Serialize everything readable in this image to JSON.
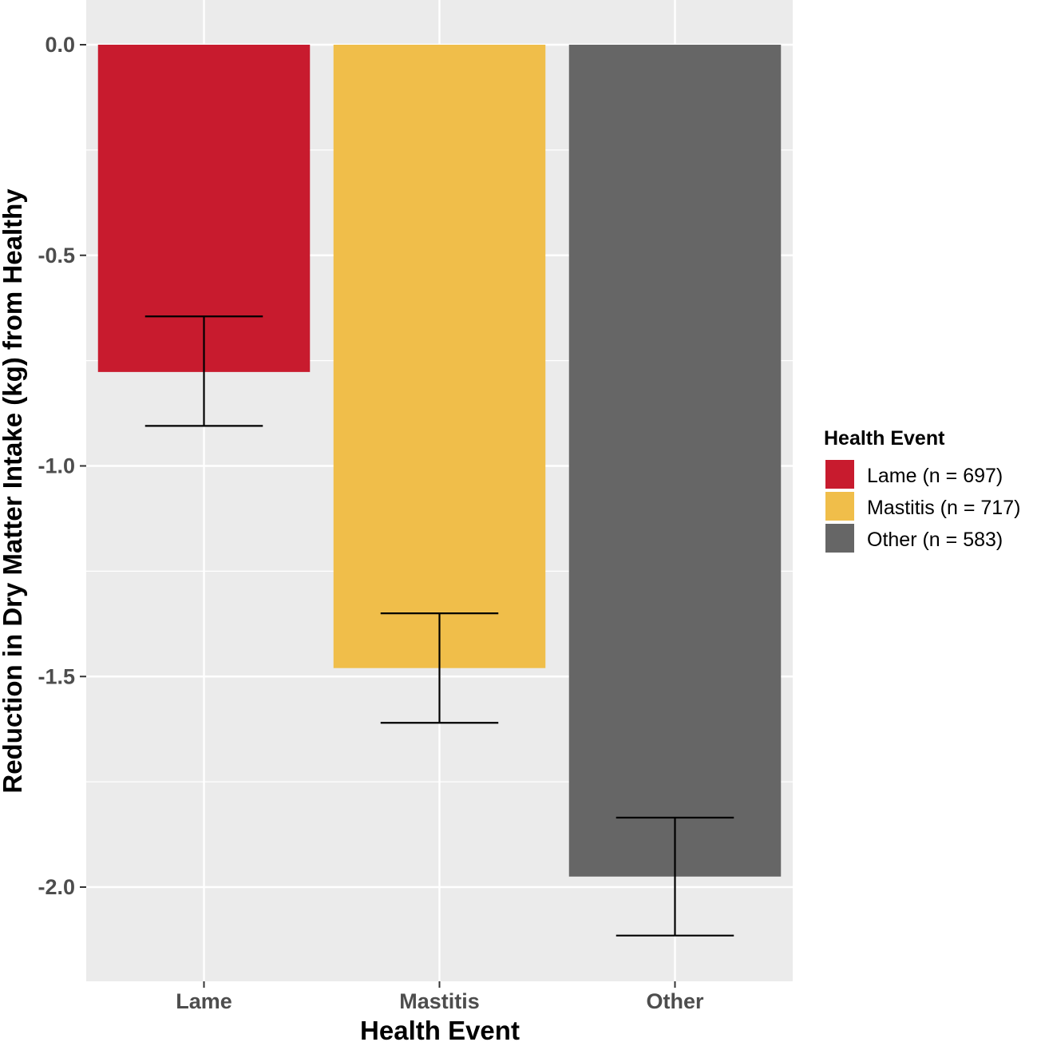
{
  "chart_data": {
    "type": "bar",
    "categories": [
      "Lame",
      "Mastitis",
      "Other"
    ],
    "values": [
      -0.777,
      -1.48,
      -1.975
    ],
    "error_bars": [
      {
        "lower": -0.905,
        "upper": -0.645
      },
      {
        "lower": -1.61,
        "upper": -1.35
      },
      {
        "lower": -2.115,
        "upper": -1.835
      }
    ],
    "xlabel": "Health Event",
    "ylabel": "Reduction in Dry Matter Intake (kg) from Healthy",
    "ylim": [
      -2.2,
      0.1
    ],
    "yticks": [
      0.0,
      -0.5,
      -1.0,
      -1.5,
      -2.0
    ],
    "ytick_labels": [
      "0.0",
      "-0.5",
      "-1.0",
      "-1.5",
      "-2.0"
    ],
    "grid": true,
    "legend": {
      "title": "Health Event",
      "position": "right",
      "entries": [
        "Lame (n = 697)",
        "Mastitis (n = 717)",
        "Other (n = 583)"
      ]
    },
    "colors": [
      "#c81b2e",
      "#f0be4a",
      "#666666"
    ]
  }
}
